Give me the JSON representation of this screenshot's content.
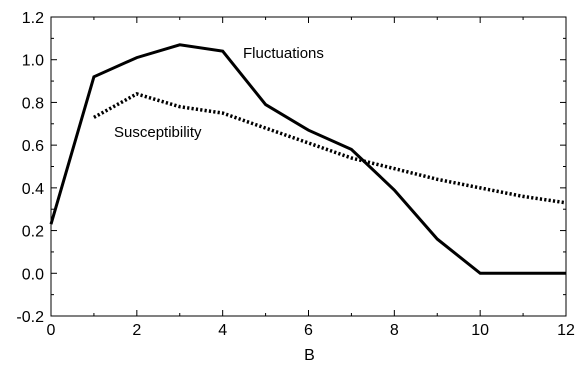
{
  "chart_data": {
    "type": "line",
    "title": "",
    "xlabel": "B",
    "ylabel": "",
    "xlim": [
      0,
      12
    ],
    "ylim": [
      -0.2,
      1.2
    ],
    "xticks": [
      "0",
      "2",
      "4",
      "6",
      "8",
      "10",
      "12"
    ],
    "yticks": [
      "-0.2",
      "0.0",
      "0.2",
      "0.4",
      "0.6",
      "0.8",
      "1.0",
      "1.2"
    ],
    "grid": false,
    "legend": "none",
    "series": [
      {
        "name": "Fluctuations",
        "style": "solid",
        "color": "#000000",
        "x": [
          0,
          1,
          2,
          3,
          4,
          5,
          6,
          7,
          8,
          9,
          10,
          11,
          12
        ],
        "y": [
          0.23,
          0.92,
          1.01,
          1.07,
          1.04,
          0.79,
          0.67,
          0.58,
          0.39,
          0.16,
          0.0,
          0.0,
          0.0
        ]
      },
      {
        "name": "Susceptibility",
        "style": "dotted",
        "color": "#000000",
        "x": [
          1,
          2,
          3,
          4,
          5,
          6,
          7,
          8,
          9,
          10,
          11,
          12
        ],
        "y": [
          0.73,
          0.84,
          0.78,
          0.75,
          0.68,
          0.61,
          0.54,
          0.49,
          0.44,
          0.4,
          0.36,
          0.33
        ]
      }
    ]
  }
}
